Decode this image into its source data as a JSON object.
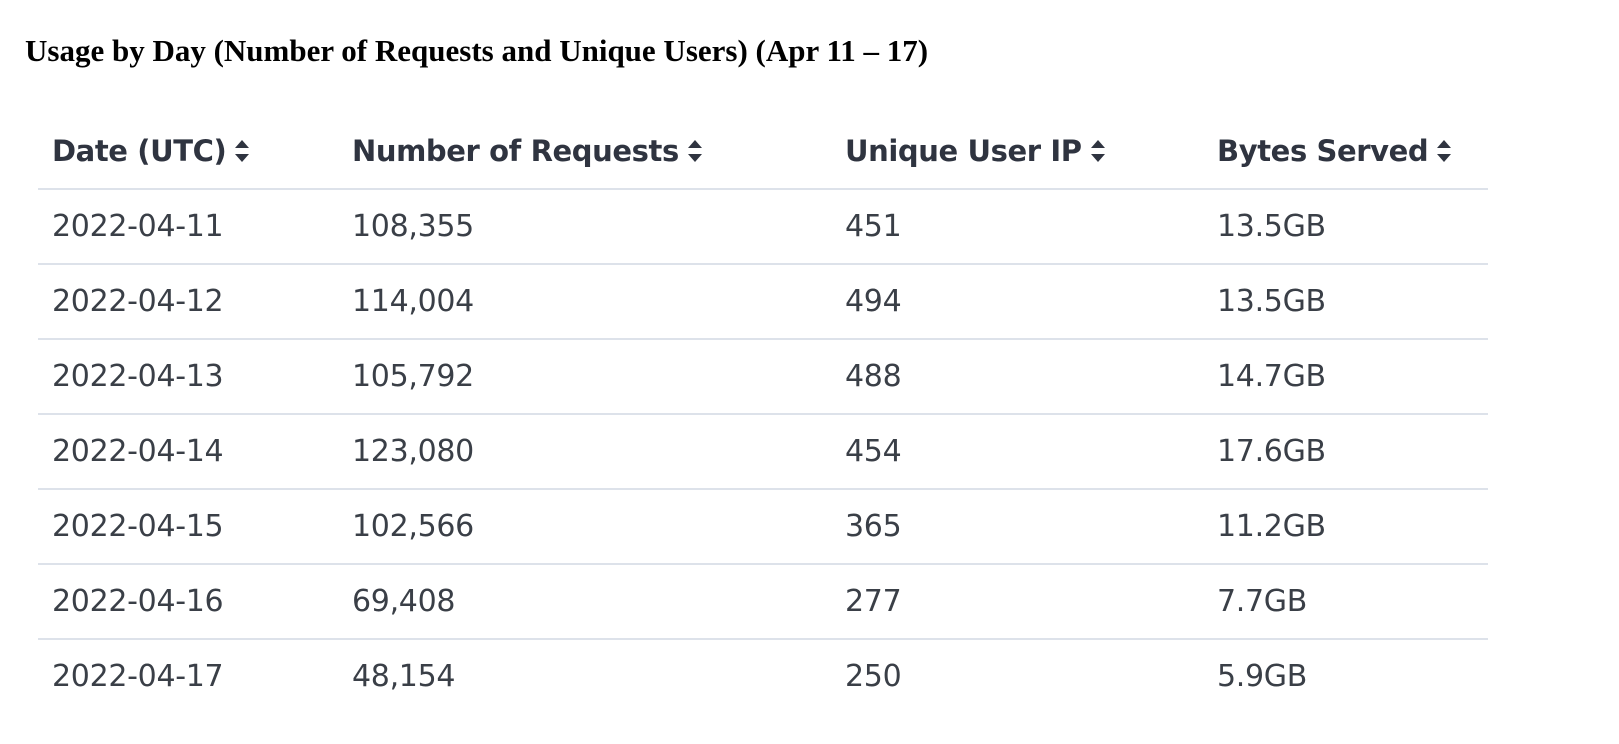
{
  "page": {
    "title": "Usage by Day (Number of Requests and Unique Users) (Apr 11 – 17)"
  },
  "table": {
    "columns": [
      {
        "label": "Date (UTC)",
        "sort_icon": "sort-updown-icon"
      },
      {
        "label": "Number of Requests",
        "sort_icon": "sort-updown-icon"
      },
      {
        "label": "Unique User IP",
        "sort_icon": "sort-updown-icon"
      },
      {
        "label": "Bytes Served",
        "sort_icon": "sort-updown-icon"
      }
    ],
    "rows": [
      [
        "2022-04-11",
        "108,355",
        "451",
        "13.5GB"
      ],
      [
        "2022-04-12",
        "114,004",
        "494",
        "13.5GB"
      ],
      [
        "2022-04-13",
        "105,792",
        "488",
        "14.7GB"
      ],
      [
        "2022-04-14",
        "123,080",
        "454",
        "17.6GB"
      ],
      [
        "2022-04-15",
        "102,566",
        "365",
        "11.2GB"
      ],
      [
        "2022-04-16",
        "69,408",
        "277",
        "7.7GB"
      ],
      [
        "2022-04-17",
        "48,154",
        "250",
        "5.9GB"
      ]
    ]
  },
  "colors": {
    "text": "#3a3f47",
    "header_text": "#2f3440",
    "row_divider": "#dde2ea"
  }
}
